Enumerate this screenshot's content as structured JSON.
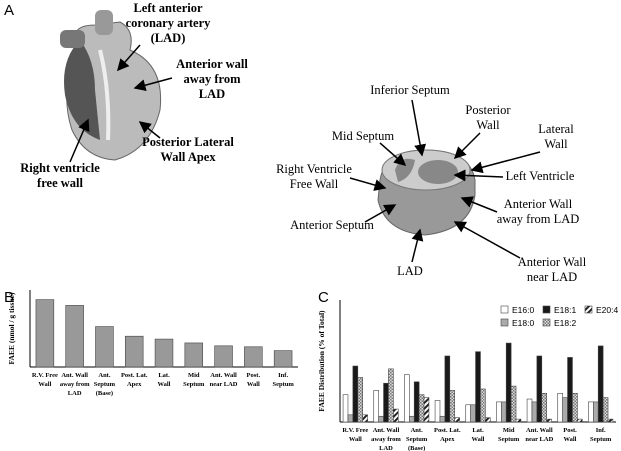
{
  "diagram": {
    "panel_a": "A",
    "panel_b": "B",
    "panel_c": "C",
    "whole_heart_labels": [
      [
        "Left anterior",
        "coronary artery",
        "(LAD)"
      ],
      [
        "Anterior wall",
        "away  from",
        "LAD"
      ],
      [
        "Posterior  Lateral",
        "Wall Apex"
      ],
      [
        "Right ventricle",
        "free wall"
      ]
    ],
    "section_labels": [
      [
        "Inferior Septum"
      ],
      [
        "Posterior",
        "Wall"
      ],
      [
        "Lateral",
        "Wall"
      ],
      [
        "Mid Septum"
      ],
      [
        "Left Ventricle"
      ],
      [
        "Right Ventricle",
        "Free Wall"
      ],
      [
        "Anterior Wall",
        "away from LAD"
      ],
      [
        "Anterior  Septum"
      ],
      [
        "LAD"
      ],
      [
        "Anterior Wall",
        "near LAD"
      ]
    ]
  },
  "chart_data": [
    {
      "type": "bar",
      "y_label": "FAEE (nmol / g tissue)",
      "categories": [
        "R.V. Free\nWall",
        "Ant. Wall\naway from\nLAD",
        "Ant.\nSeptum\n(Base)",
        "Post. Lat.\nApex",
        "Lat.\nWall",
        "Mid\nSeptum",
        "Ant. Wall\nnear LAD",
        "Post.\nWall",
        "Inf.\nSeptum"
      ],
      "values": [
        70,
        64,
        42,
        32,
        29,
        25,
        22,
        21,
        17
      ],
      "color": "#999999",
      "ylim": [
        0,
        80
      ]
    },
    {
      "type": "bar",
      "y_label": "FAEE Distribution (% of Total)",
      "categories": [
        "R.V. Free\nWall",
        "Ant. Wall\naway from\nLAD",
        "Ant.\nSeptum\n(Base)",
        "Post. Lat.\nApex",
        "Lat.\nWall",
        "Mid\nSeptum",
        "Ant. Wall\nnear LAD",
        "Post.\nWall",
        "Inf.\nSeptum"
      ],
      "series": [
        {
          "name": "E16:0",
          "color": "#ffffff",
          "values": [
            19,
            22,
            33,
            15,
            12,
            14,
            16,
            20,
            14
          ]
        },
        {
          "name": "E18:0",
          "color": "#aaaaaa",
          "values": [
            5,
            4,
            4,
            4,
            12,
            14,
            14,
            17,
            14
          ]
        },
        {
          "name": "E18:1",
          "color": "#1a1a1a",
          "values": [
            39,
            27,
            28,
            46,
            49,
            55,
            46,
            45,
            53
          ]
        },
        {
          "name": "E18:2",
          "color": "#cccccc",
          "pattern": "checker",
          "values": [
            31,
            37,
            19,
            22,
            23,
            25,
            20,
            20,
            17
          ]
        },
        {
          "name": "E20:4",
          "color": "#333333",
          "pattern": "hatch",
          "values": [
            5,
            9,
            17,
            3,
            3,
            2,
            2,
            2,
            2
          ]
        }
      ],
      "ylim": [
        0,
        85
      ],
      "legend": "upper right"
    }
  ]
}
